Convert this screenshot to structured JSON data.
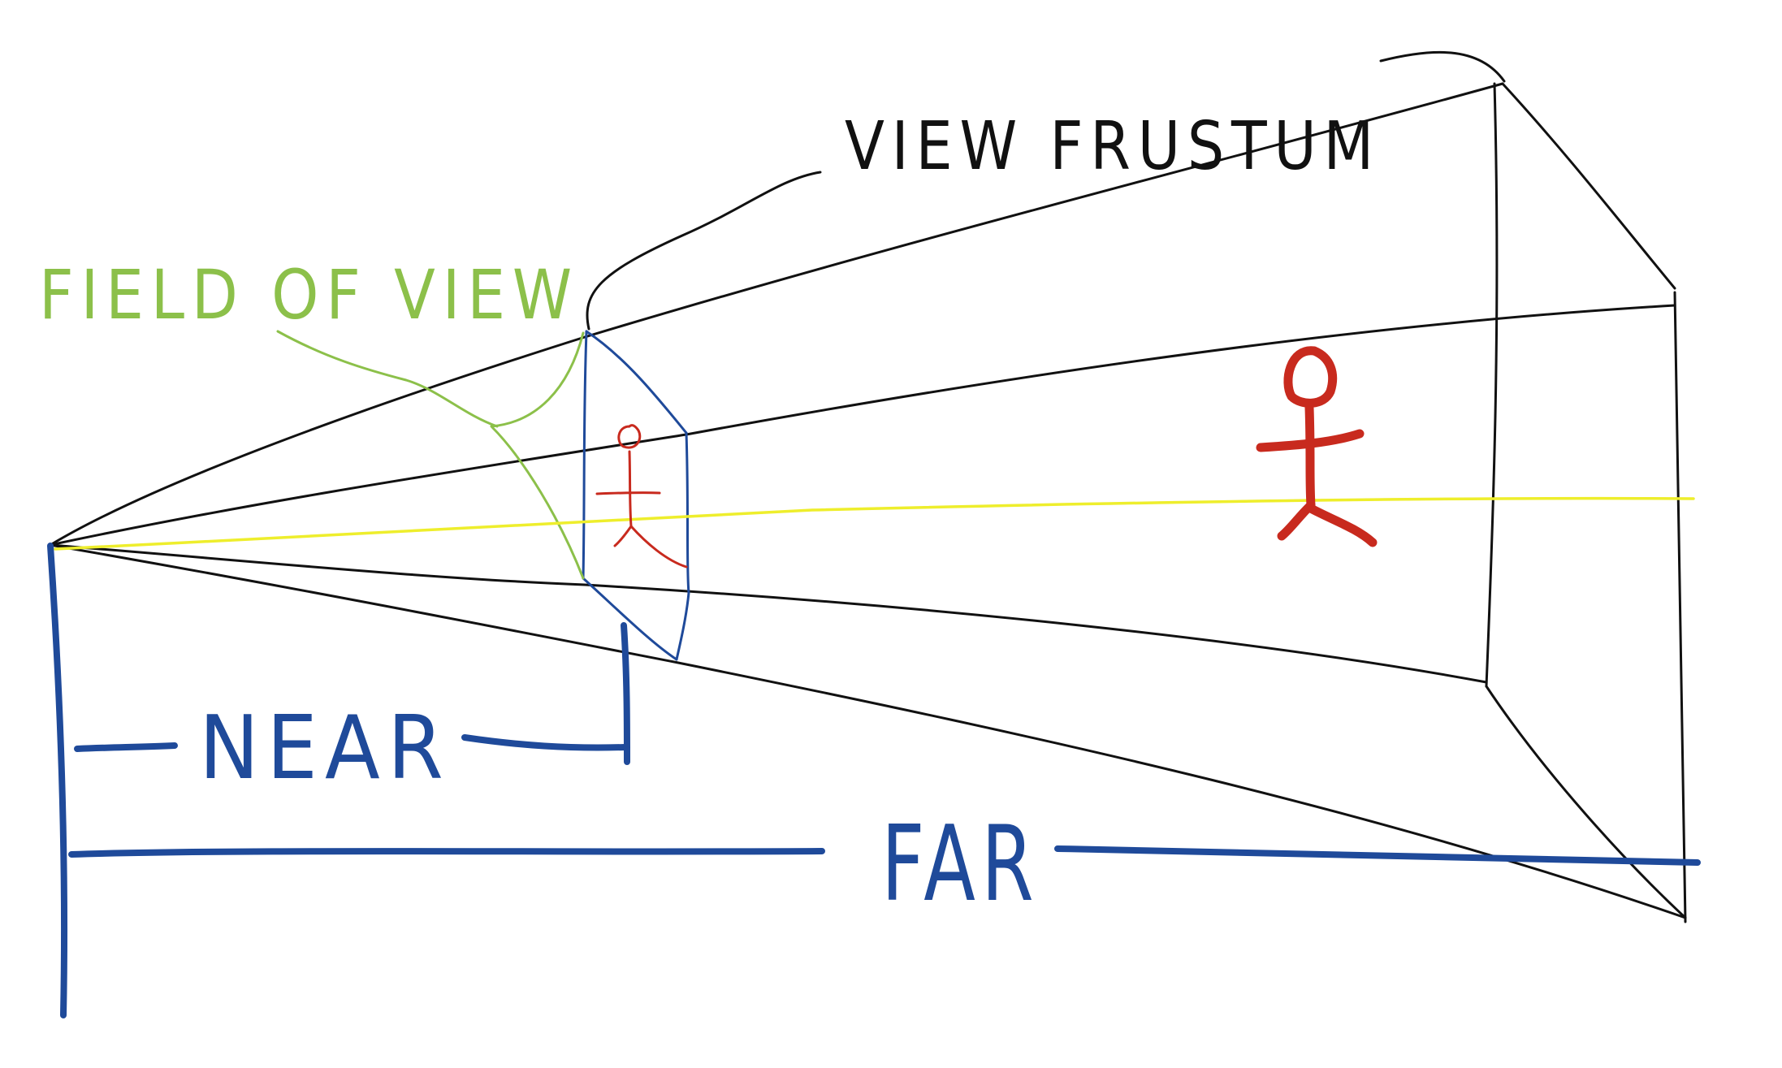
{
  "labels": {
    "field_of_view": "FIELD OF VIEW",
    "view_frustum": "VIEW FRUSTUM",
    "near": "NEAR",
    "far": "FAR"
  },
  "colors": {
    "frustum_outline": "#111111",
    "field_of_view": "#8cc04a",
    "near_far": "#1f4a9a",
    "figure": "#c82a1e",
    "view_axis": "#eeee2c"
  }
}
